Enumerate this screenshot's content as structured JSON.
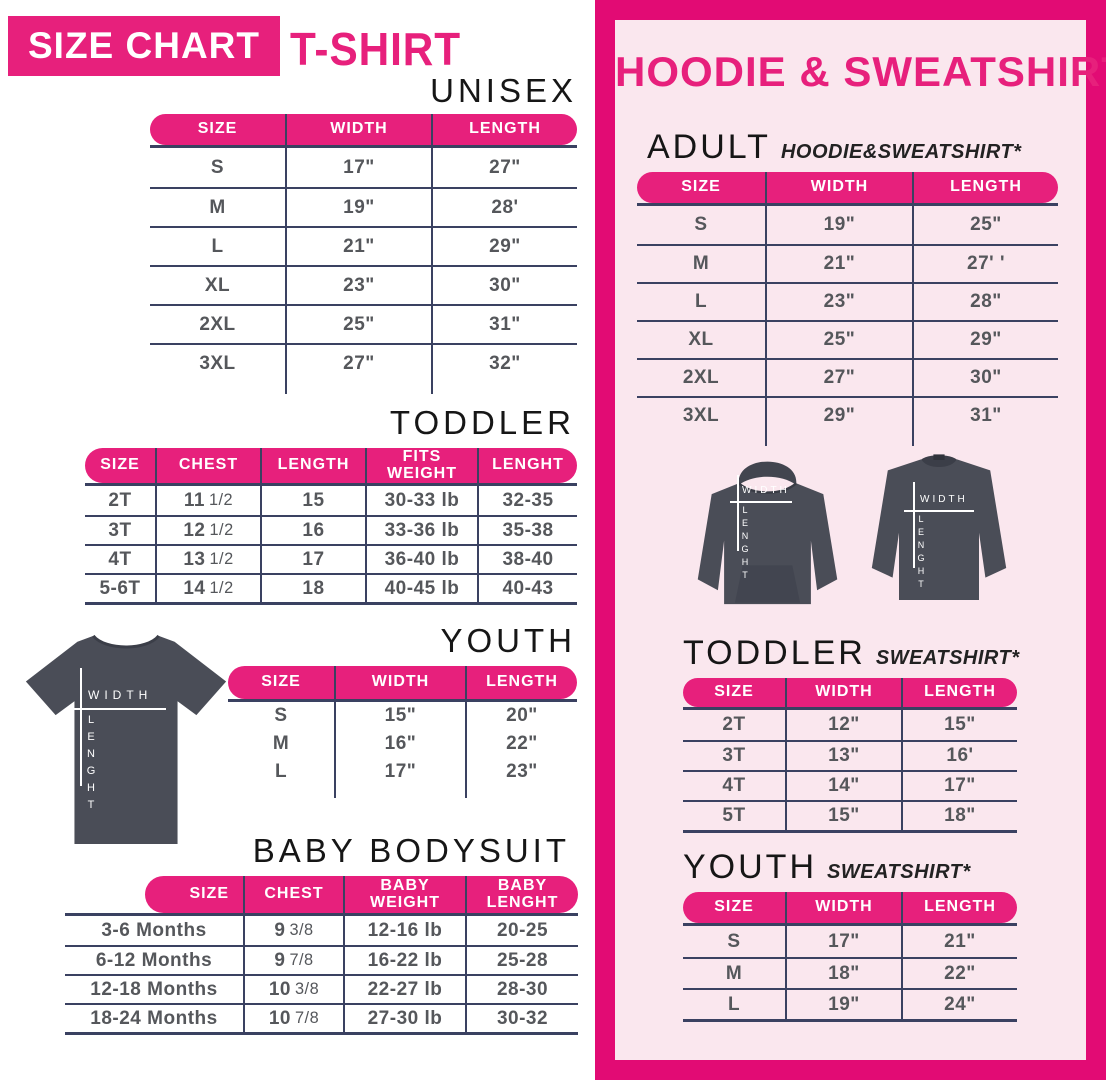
{
  "colors": {
    "pink": "#E7207C",
    "deep_pink": "#E20B74",
    "light_pink": "#FAE7EE",
    "line_navy": "#3A4161",
    "text_gray": "#55575B",
    "garment_gray": "#4A4D57"
  },
  "left": {
    "badge_label": "SIZE CHART",
    "title": "T-SHIRT",
    "unisex": {
      "heading": "UNISEX",
      "columns": [
        "SIZE",
        "WIDTH",
        "LENGTH"
      ],
      "rows": [
        [
          "S",
          "17\"",
          "27\""
        ],
        [
          "M",
          "19\"",
          "28'"
        ],
        [
          "L",
          "21\"",
          "29\""
        ],
        [
          "XL",
          "23\"",
          "30\""
        ],
        [
          "2XL",
          "25\"",
          "31\""
        ],
        [
          "3XL",
          "27\"",
          "32\""
        ]
      ]
    },
    "toddler": {
      "heading": "TODDLER",
      "columns": [
        "SIZE",
        "CHEST",
        "LENGTH",
        "FITS\nWEIGHT",
        "LENGHT"
      ],
      "rows": [
        [
          "2T",
          "11 1/2",
          "15",
          "30-33 lb",
          "32-35"
        ],
        [
          "3T",
          "12 1/2",
          "16",
          "33-36 lb",
          "35-38"
        ],
        [
          "4T",
          "13 1/2",
          "17",
          "36-40 lb",
          "38-40"
        ],
        [
          "5-6T",
          "14 1/2",
          "18",
          "40-45 lb",
          "40-43"
        ]
      ]
    },
    "youth": {
      "heading": "YOUTH",
      "columns": [
        "SIZE",
        "WIDTH",
        "LENGTH"
      ],
      "rows": [
        [
          "S",
          "15\"",
          "20\""
        ],
        [
          "M",
          "16\"",
          "22\""
        ],
        [
          "L",
          "17\"",
          "23\""
        ]
      ]
    },
    "baby": {
      "heading": "BABY BODYSUIT",
      "columns": [
        "SIZE",
        "CHEST",
        "BABY\nWEIGHT",
        "BABY\nLENGHT"
      ],
      "rows": [
        [
          "3-6 Months",
          "9 3/8",
          "12-16 lb",
          "20-25"
        ],
        [
          "6-12 Months",
          "9 7/8",
          "16-22 lb",
          "25-28"
        ],
        [
          "12-18 Months",
          "10 3/8",
          "22-27 lb",
          "28-30"
        ],
        [
          "18-24 Months",
          "10 7/8",
          "27-30 lb",
          "30-32"
        ]
      ]
    }
  },
  "right": {
    "title": "HOODIE & SWEATSHIRT",
    "adult": {
      "heading": "ADULT",
      "subheading": "HOODIE&SWEATSHIRT*",
      "columns": [
        "SIZE",
        "WIDTH",
        "LENGTH"
      ],
      "rows": [
        [
          "S",
          "19\"",
          "25\""
        ],
        [
          "M",
          "21\"",
          "27' '"
        ],
        [
          "L",
          "23\"",
          "28\""
        ],
        [
          "XL",
          "25\"",
          "29\""
        ],
        [
          "2XL",
          "27\"",
          "30\""
        ],
        [
          "3XL",
          "29\"",
          "31\""
        ]
      ]
    },
    "toddler": {
      "heading": "TODDLER",
      "subheading": "SWEATSHIRT*",
      "columns": [
        "SIZE",
        "WIDTH",
        "LENGTH"
      ],
      "rows": [
        [
          "2T",
          "12\"",
          "15\""
        ],
        [
          "3T",
          "13\"",
          "16'"
        ],
        [
          "4T",
          "14\"",
          "17\""
        ],
        [
          "5T",
          "15\"",
          "18\""
        ]
      ]
    },
    "youth": {
      "heading": "YOUTH",
      "subheading": "SWEATSHIRT*",
      "columns": [
        "SIZE",
        "WIDTH",
        "LENGTH"
      ],
      "rows": [
        [
          "S",
          "17\"",
          "21\""
        ],
        [
          "M",
          "18\"",
          "22\""
        ],
        [
          "L",
          "19\"",
          "24\""
        ]
      ]
    }
  },
  "garment_labels": {
    "width": "WIDTH",
    "length": "LENGHT"
  }
}
